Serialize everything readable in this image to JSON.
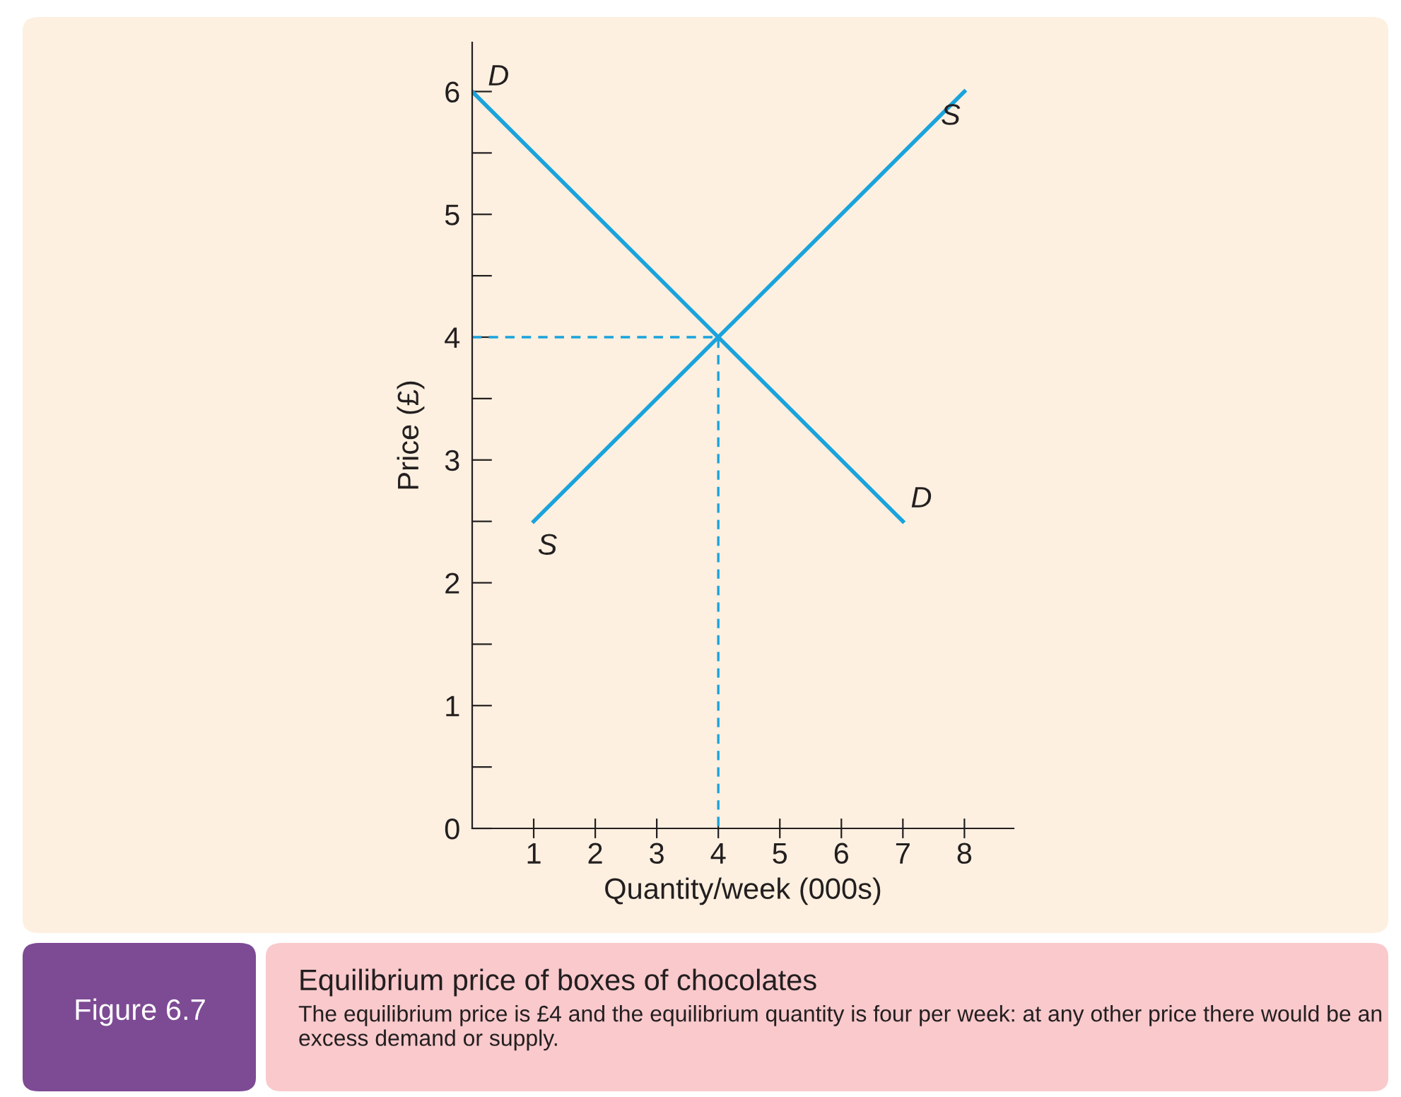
{
  "chart_data": {
    "type": "line",
    "title": "Equilibrium price of boxes of chocolates",
    "subtitle": "The equilibrium price is £4 and the equilibrium quantity is four per week: at any other price there would be an excess demand or supply.",
    "annotations": [
      "Figure 6.7"
    ],
    "xlabel": "Quantity/week (000s)",
    "ylabel": "Price (£)",
    "series": [
      {
        "name": "D",
        "color": "#1aa3dc",
        "x": [
          0,
          7
        ],
        "values": [
          6,
          2.5
        ]
      },
      {
        "name": "S",
        "color": "#1aa3dc",
        "x": [
          1,
          8
        ],
        "values": [
          2.5,
          6
        ]
      },
      {
        "color": "#1aa3dc",
        "x": [
          0,
          4,
          4
        ],
        "values": [
          4,
          4,
          0
        ],
        "line_style": "dashed"
      }
    ],
    "xlim": [
      0,
      8.8
    ],
    "ylim": [
      0,
      6.4
    ],
    "xticks": [
      1,
      2,
      3,
      4,
      5,
      6,
      7,
      8
    ],
    "yticks": [
      0,
      {
        "value": 0.5,
        "label": null
      },
      1,
      {
        "value": 1.5,
        "label": null
      },
      2,
      {
        "value": 2.5,
        "label": null
      },
      3,
      {
        "value": 3.5,
        "label": null
      },
      4,
      {
        "value": 4.5,
        "label": null
      },
      5,
      {
        "value": 5.5,
        "label": null
      },
      6
    ],
    "grid": false,
    "legend": false,
    "marker": "none",
    "line_style": "solid"
  }
}
